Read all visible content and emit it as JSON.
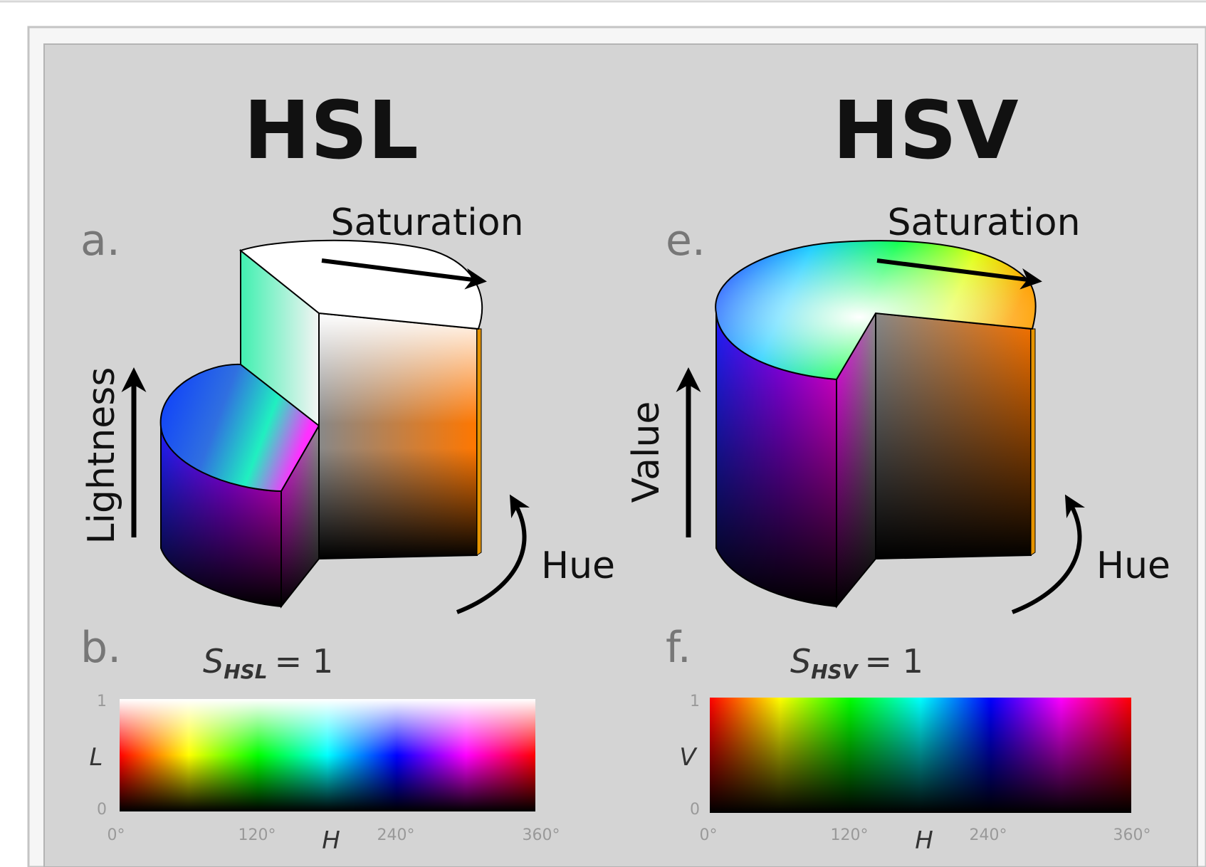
{
  "hsl": {
    "title": "HSL",
    "panel_top_letter": "a.",
    "panel_bottom_letter": "b.",
    "saturation_label": "Saturation",
    "vertical_label": "Lightness",
    "hue_label": "Hue",
    "strip": {
      "s_symbol": "S",
      "s_subscript": "HSL",
      "s_value": "= 1",
      "y_axis_symbol": "L",
      "y_tick_top": "1",
      "y_tick_bottom": "0",
      "x_axis_symbol": "H",
      "x_ticks": [
        "0°",
        "120°",
        "240°",
        "360°"
      ]
    }
  },
  "hsv": {
    "title": "HSV",
    "panel_top_letter": "e.",
    "panel_bottom_letter": "f.",
    "saturation_label": "Saturation",
    "vertical_label": "Value",
    "hue_label": "Hue",
    "strip": {
      "s_symbol": "S",
      "s_subscript": "HSV",
      "s_value": "= 1",
      "y_axis_symbol": "V",
      "y_tick_top": "1",
      "y_tick_bottom": "0",
      "x_axis_symbol": "H",
      "x_ticks": [
        "0°",
        "120°",
        "240°",
        "360°"
      ]
    }
  },
  "colors": {
    "panel_bg": "#d4d4d4",
    "frame_border": "#bdbdbd",
    "outer_bg": "#ffffff"
  }
}
